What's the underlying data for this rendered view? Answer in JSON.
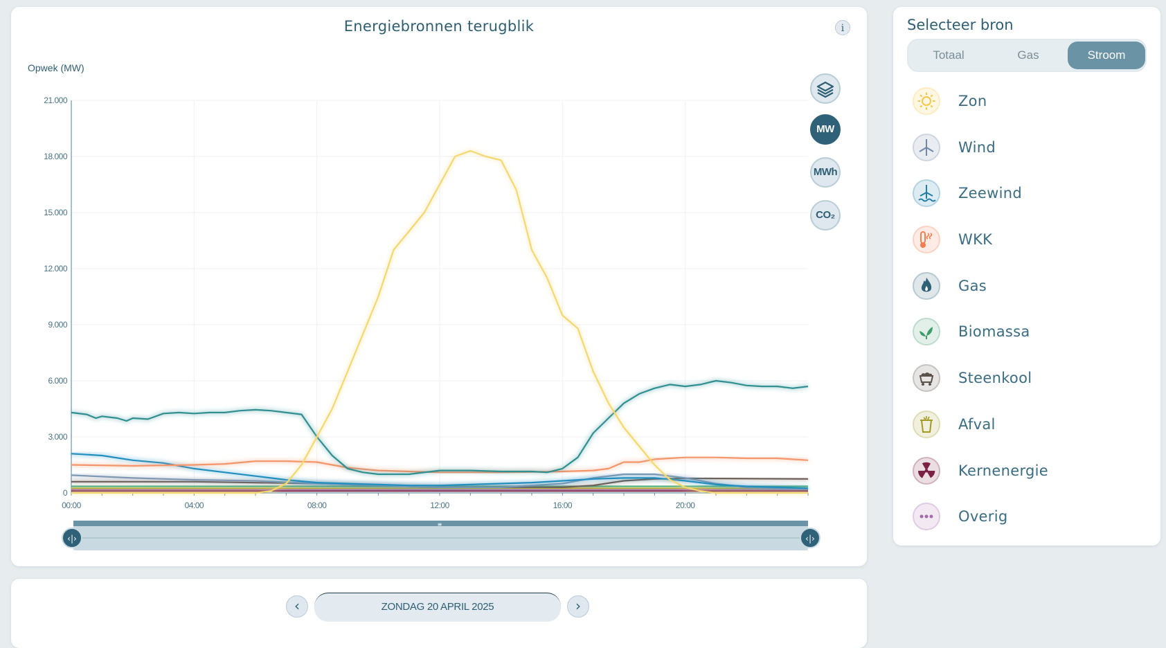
{
  "chart_card": {
    "title": "Energiebronnen terugblik",
    "info_label": "i",
    "unit_buttons": [
      {
        "label": "",
        "icon": "layers-icon",
        "active": false
      },
      {
        "label": "MW",
        "active": true
      },
      {
        "label": "MWh",
        "active": false
      },
      {
        "label": "CO₂",
        "active": false
      }
    ]
  },
  "chart_data": {
    "type": "line",
    "ylabel": "Opwek (MW)",
    "ylim": [
      0,
      21000
    ],
    "y_ticks": [
      "0",
      "3.000",
      "6.000",
      "9.000",
      "12.000",
      "15.000",
      "18.000",
      "21.000"
    ],
    "x_range_hours": [
      0,
      24
    ],
    "x_ticks": [
      "00:00",
      "04:00",
      "08:00",
      "12:00",
      "16:00",
      "20:00"
    ],
    "grid": true,
    "series": [
      {
        "name": "Zon",
        "color": "#f5d870",
        "x": [
          0,
          6,
          6.5,
          7,
          7.5,
          8,
          8.5,
          9,
          9.5,
          10,
          10.5,
          11,
          11.5,
          12,
          12.5,
          13,
          13.5,
          14,
          14.5,
          15,
          15.5,
          16,
          16.5,
          17,
          17.5,
          18,
          18.5,
          19,
          19.5,
          20,
          20.5,
          21,
          21.5,
          22,
          23,
          24
        ],
        "values": [
          0,
          0,
          100,
          500,
          1500,
          3000,
          4500,
          6500,
          8500,
          10500,
          13000,
          14000,
          15000,
          16500,
          18000,
          18300,
          18000,
          17800,
          16200,
          13000,
          11500,
          9500,
          8800,
          6500,
          4800,
          3500,
          2500,
          1500,
          700,
          300,
          100,
          0,
          0,
          0,
          0,
          0
        ]
      },
      {
        "name": "Zeewind",
        "color": "#2f8f91",
        "x": [
          0,
          0.5,
          0.8,
          1,
          1.5,
          1.8,
          2,
          2.5,
          3,
          3.5,
          4,
          4.5,
          5,
          5.5,
          6,
          6.5,
          7,
          7.5,
          8,
          8.5,
          9,
          9.5,
          10,
          11,
          12,
          13,
          14,
          15,
          15.5,
          16,
          16.5,
          17,
          17.5,
          18,
          18.5,
          19,
          19.5,
          20,
          20.5,
          21,
          21.5,
          22,
          22.5,
          23,
          23.5,
          24
        ],
        "values": [
          4300,
          4200,
          4000,
          4100,
          4000,
          3850,
          4000,
          3950,
          4250,
          4300,
          4250,
          4300,
          4300,
          4400,
          4450,
          4400,
          4300,
          4200,
          3000,
          2000,
          1300,
          1100,
          1000,
          1000,
          1200,
          1200,
          1150,
          1150,
          1100,
          1300,
          1900,
          3200,
          4000,
          4800,
          5300,
          5600,
          5800,
          5700,
          5800,
          6000,
          5900,
          5750,
          5700,
          5700,
          5600,
          5700
        ]
      },
      {
        "name": "WKK",
        "color": "#f4956a",
        "x": [
          0,
          2,
          4,
          5,
          6,
          7,
          8,
          8.5,
          9,
          10,
          12,
          14,
          16,
          17,
          17.5,
          18,
          18.5,
          19,
          19.5,
          20,
          21,
          22,
          23,
          24
        ],
        "values": [
          1500,
          1450,
          1500,
          1550,
          1700,
          1700,
          1650,
          1500,
          1350,
          1200,
          1100,
          1100,
          1150,
          1200,
          1300,
          1650,
          1650,
          1800,
          1850,
          1900,
          1900,
          1850,
          1850,
          1750
        ]
      },
      {
        "name": "Wind",
        "color": "#1f8fbf",
        "x": [
          0,
          1,
          2,
          3,
          4,
          5,
          6,
          7,
          8,
          9,
          10,
          11,
          12,
          13,
          14,
          15,
          16,
          17,
          18,
          19,
          20,
          21,
          22,
          23,
          24
        ],
        "values": [
          2100,
          2000,
          1750,
          1600,
          1300,
          1100,
          900,
          700,
          550,
          500,
          450,
          400,
          400,
          450,
          500,
          550,
          650,
          750,
          800,
          800,
          650,
          450,
          350,
          300,
          250
        ]
      },
      {
        "name": "Gas",
        "color": "#7f99b4",
        "x": [
          0,
          2,
          4,
          6,
          8,
          10,
          12,
          14,
          16,
          17,
          18,
          19,
          20,
          21,
          22,
          23,
          24
        ],
        "values": [
          950,
          800,
          700,
          650,
          500,
          400,
          300,
          300,
          500,
          800,
          1000,
          1000,
          800,
          500,
          300,
          250,
          200
        ]
      },
      {
        "name": "Steenkool",
        "color": "#6b5e55",
        "x": [
          0,
          4,
          8,
          12,
          16,
          17,
          18,
          19,
          20,
          24
        ],
        "values": [
          600,
          600,
          500,
          300,
          300,
          400,
          650,
          750,
          780,
          750
        ]
      },
      {
        "name": "Biomassa",
        "color": "#4fae79",
        "x": [
          0,
          24
        ],
        "values": [
          350,
          350
        ]
      },
      {
        "name": "Afval",
        "color": "#b7b03a",
        "x": [
          0,
          24
        ],
        "values": [
          250,
          250
        ]
      },
      {
        "name": "Kernenergie",
        "color": "#7d2f4b",
        "x": [
          0,
          24
        ],
        "values": [
          100,
          100
        ]
      },
      {
        "name": "Overig",
        "color": "#b37ab8",
        "x": [
          0,
          24
        ],
        "values": [
          180,
          180
        ]
      }
    ]
  },
  "side_panel": {
    "title": "Selecteer bron",
    "tabs": [
      {
        "label": "Totaal",
        "active": false
      },
      {
        "label": "Gas",
        "active": false
      },
      {
        "label": "Stroom",
        "active": true
      }
    ],
    "sources": [
      {
        "label": "Zon",
        "icon": "sun-icon",
        "color": "#f5c84a"
      },
      {
        "label": "Wind",
        "icon": "wind-turbine-icon",
        "color": "#6f88a6"
      },
      {
        "label": "Zeewind",
        "icon": "offshore-wind-icon",
        "color": "#1f7fa8"
      },
      {
        "label": "WKK",
        "icon": "thermometer-icon",
        "color": "#f07e4f"
      },
      {
        "label": "Gas",
        "icon": "flame-icon",
        "color": "#2f6178"
      },
      {
        "label": "Biomassa",
        "icon": "leaf-icon",
        "color": "#3d9c6a"
      },
      {
        "label": "Steenkool",
        "icon": "coal-cart-icon",
        "color": "#5b514b"
      },
      {
        "label": "Afval",
        "icon": "waste-bin-icon",
        "color": "#a19b23"
      },
      {
        "label": "Kernenergie",
        "icon": "radiation-icon",
        "color": "#7a2145"
      },
      {
        "label": "Overig",
        "icon": "more-dots-icon",
        "color": "#a769ad"
      }
    ]
  },
  "date_nav": {
    "prev_icon": "chevron-left-icon",
    "date_label": "ZONDAG 20 APRIL 2025",
    "next_icon": "chevron-right-icon"
  }
}
